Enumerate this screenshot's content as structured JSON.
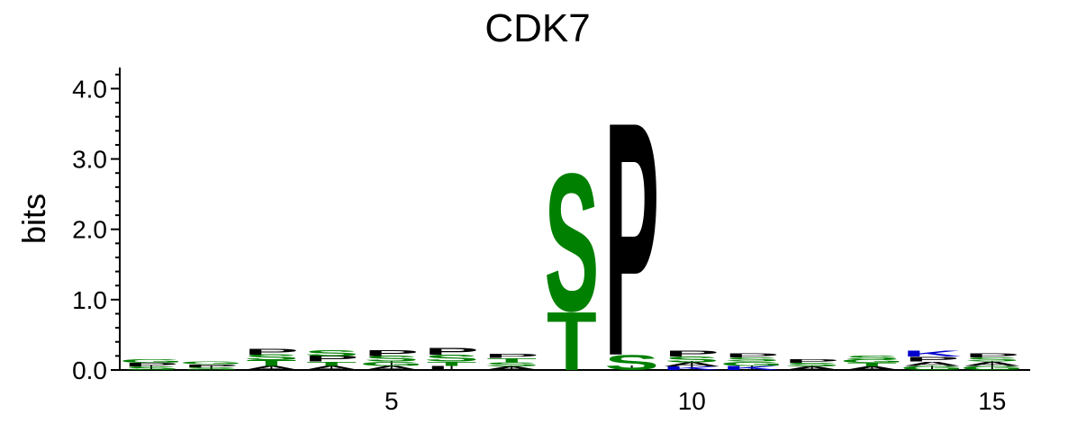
{
  "chart_data": {
    "type": "sequence-logo",
    "title": "CDK7",
    "ylabel": "bits",
    "xlabel": "",
    "ylim": [
      0,
      4.3
    ],
    "xlim": [
      1,
      15
    ],
    "yticks": [
      {
        "value": 0.0,
        "label": "0.0"
      },
      {
        "value": 1.0,
        "label": "1.0"
      },
      {
        "value": 2.0,
        "label": "2.0"
      },
      {
        "value": 3.0,
        "label": "3.0"
      },
      {
        "value": 4.0,
        "label": "4.0"
      }
    ],
    "xticks": [
      {
        "value": 5,
        "label": "5"
      },
      {
        "value": 10,
        "label": "10"
      },
      {
        "value": 15,
        "label": "15"
      }
    ],
    "colors": {
      "polar_green": "#008000",
      "hydrophobic_black": "#000000",
      "basic_blue": "#0000cc"
    },
    "positions": [
      {
        "pos": 1,
        "stack": [
          {
            "letter": "S",
            "bits": 0.05,
            "color": "#008000"
          },
          {
            "letter": "P",
            "bits": 0.05,
            "color": "#000000"
          },
          {
            "letter": "G",
            "bits": 0.05,
            "color": "#008000"
          }
        ]
      },
      {
        "pos": 2,
        "stack": [
          {
            "letter": "S",
            "bits": 0.04,
            "color": "#008000"
          },
          {
            "letter": "P",
            "bits": 0.04,
            "color": "#000000"
          },
          {
            "letter": "G",
            "bits": 0.04,
            "color": "#008000"
          }
        ]
      },
      {
        "pos": 3,
        "stack": [
          {
            "letter": "A",
            "bits": 0.06,
            "color": "#000000"
          },
          {
            "letter": "T",
            "bits": 0.08,
            "color": "#008000"
          },
          {
            "letter": "S",
            "bits": 0.08,
            "color": "#008000"
          },
          {
            "letter": "P",
            "bits": 0.08,
            "color": "#000000"
          }
        ]
      },
      {
        "pos": 4,
        "stack": [
          {
            "letter": "A",
            "bits": 0.06,
            "color": "#000000"
          },
          {
            "letter": "T",
            "bits": 0.06,
            "color": "#008000"
          },
          {
            "letter": "P",
            "bits": 0.08,
            "color": "#000000"
          },
          {
            "letter": "S",
            "bits": 0.08,
            "color": "#008000"
          }
        ]
      },
      {
        "pos": 5,
        "stack": [
          {
            "letter": "A",
            "bits": 0.06,
            "color": "#000000"
          },
          {
            "letter": "G",
            "bits": 0.06,
            "color": "#008000"
          },
          {
            "letter": "S",
            "bits": 0.08,
            "color": "#008000"
          },
          {
            "letter": "P",
            "bits": 0.08,
            "color": "#000000"
          }
        ]
      },
      {
        "pos": 6,
        "stack": [
          {
            "letter": "L",
            "bits": 0.06,
            "color": "#000000"
          },
          {
            "letter": "T",
            "bits": 0.06,
            "color": "#008000"
          },
          {
            "letter": "S",
            "bits": 0.1,
            "color": "#008000"
          },
          {
            "letter": "P",
            "bits": 0.1,
            "color": "#000000"
          }
        ]
      },
      {
        "pos": 7,
        "stack": [
          {
            "letter": "A",
            "bits": 0.05,
            "color": "#000000"
          },
          {
            "letter": "S",
            "bits": 0.06,
            "color": "#008000"
          },
          {
            "letter": "T",
            "bits": 0.06,
            "color": "#008000"
          },
          {
            "letter": "P",
            "bits": 0.06,
            "color": "#000000"
          }
        ]
      },
      {
        "pos": 8,
        "stack": [
          {
            "letter": "T",
            "bits": 0.85,
            "color": "#008000"
          },
          {
            "letter": "S",
            "bits": 2.0,
            "color": "#008000"
          }
        ]
      },
      {
        "pos": 9,
        "stack": [
          {
            "letter": "S",
            "bits": 0.22,
            "color": "#008000"
          },
          {
            "letter": "P",
            "bits": 3.4,
            "color": "#000000"
          }
        ]
      },
      {
        "pos": 10,
        "stack": [
          {
            "letter": "K",
            "bits": 0.05,
            "color": "#0000cc"
          },
          {
            "letter": "A",
            "bits": 0.06,
            "color": "#000000"
          },
          {
            "letter": "S",
            "bits": 0.08,
            "color": "#008000"
          },
          {
            "letter": "P",
            "bits": 0.08,
            "color": "#000000"
          }
        ]
      },
      {
        "pos": 11,
        "stack": [
          {
            "letter": "K",
            "bits": 0.06,
            "color": "#0000cc"
          },
          {
            "letter": "G",
            "bits": 0.06,
            "color": "#008000"
          },
          {
            "letter": "S",
            "bits": 0.06,
            "color": "#008000"
          },
          {
            "letter": "P",
            "bits": 0.06,
            "color": "#000000"
          }
        ]
      },
      {
        "pos": 12,
        "stack": [
          {
            "letter": "A",
            "bits": 0.05,
            "color": "#000000"
          },
          {
            "letter": "S",
            "bits": 0.05,
            "color": "#008000"
          },
          {
            "letter": "P",
            "bits": 0.05,
            "color": "#000000"
          }
        ]
      },
      {
        "pos": 13,
        "stack": [
          {
            "letter": "A",
            "bits": 0.05,
            "color": "#000000"
          },
          {
            "letter": "T",
            "bits": 0.05,
            "color": "#008000"
          },
          {
            "letter": "G",
            "bits": 0.05,
            "color": "#008000"
          },
          {
            "letter": "S",
            "bits": 0.06,
            "color": "#008000"
          }
        ]
      },
      {
        "pos": 14,
        "stack": [
          {
            "letter": "G",
            "bits": 0.06,
            "color": "#008000"
          },
          {
            "letter": "A",
            "bits": 0.06,
            "color": "#000000"
          },
          {
            "letter": "P",
            "bits": 0.07,
            "color": "#000000"
          },
          {
            "letter": "K",
            "bits": 0.08,
            "color": "#0000cc"
          }
        ]
      },
      {
        "pos": 15,
        "stack": [
          {
            "letter": "G",
            "bits": 0.06,
            "color": "#008000"
          },
          {
            "letter": "A",
            "bits": 0.06,
            "color": "#000000"
          },
          {
            "letter": "S",
            "bits": 0.06,
            "color": "#008000"
          },
          {
            "letter": "P",
            "bits": 0.06,
            "color": "#000000"
          }
        ]
      }
    ]
  }
}
